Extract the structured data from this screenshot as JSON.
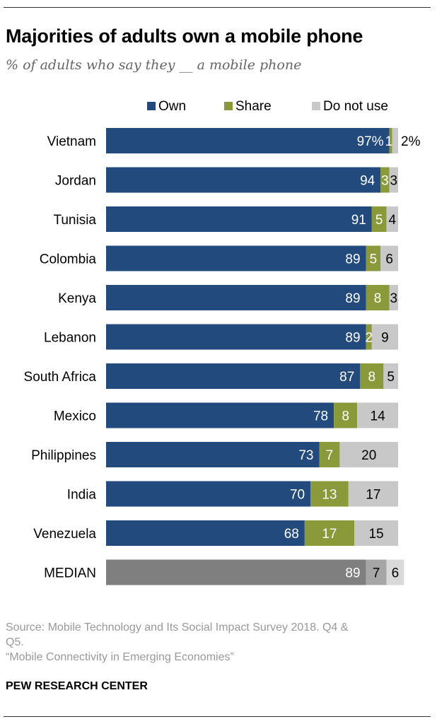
{
  "title": "Majorities of adults own a mobile phone",
  "subtitle": "% of adults who say they __ a mobile phone",
  "source_lines": [
    "Source: Mobile Technology and Its Social Impact Survey 2018. Q4 &",
    "Q5.",
    "“Mobile Connectivity in Emerging Economies”"
  ],
  "brand": "PEW RESEARCH CENTER",
  "chart_data": {
    "type": "bar",
    "orientation": "horizontal",
    "stacked": true,
    "xlim": [
      0,
      100
    ],
    "grid": false,
    "legend_position": "top",
    "categories": [
      "Vietnam",
      "Jordan",
      "Tunisia",
      "Colombia",
      "Kenya",
      "Lebanon",
      "South Africa",
      "Mexico",
      "Philippines",
      "India",
      "Venezuela",
      "MEDIAN"
    ],
    "series": [
      {
        "name": "Own",
        "color": "#234a7d",
        "median_color": "#7f7f7f",
        "values": [
          97,
          94,
          91,
          89,
          89,
          89,
          87,
          78,
          73,
          70,
          68,
          89
        ],
        "labels": [
          "97%",
          "94",
          "91",
          "89",
          "89",
          "89",
          "87",
          "78",
          "73",
          "70",
          "68",
          "89"
        ]
      },
      {
        "name": "Share",
        "color": "#8a9a3b",
        "median_color": "#a6a6a6",
        "values": [
          1,
          3,
          5,
          5,
          8,
          2,
          8,
          8,
          7,
          13,
          17,
          7
        ],
        "labels": [
          "1%",
          "3",
          "5",
          "5",
          "8",
          "2",
          "8",
          "8",
          "7",
          "13",
          "17",
          "7"
        ]
      },
      {
        "name": "Do not use",
        "color": "#c8c8c8",
        "median_color": "#d9d9d9",
        "values": [
          2,
          3,
          4,
          6,
          3,
          9,
          5,
          14,
          20,
          17,
          15,
          6
        ],
        "labels": [
          "2%",
          "3",
          "4",
          "6",
          "3",
          "9",
          "5",
          "14",
          "20",
          "17",
          "15",
          "6"
        ]
      }
    ]
  }
}
